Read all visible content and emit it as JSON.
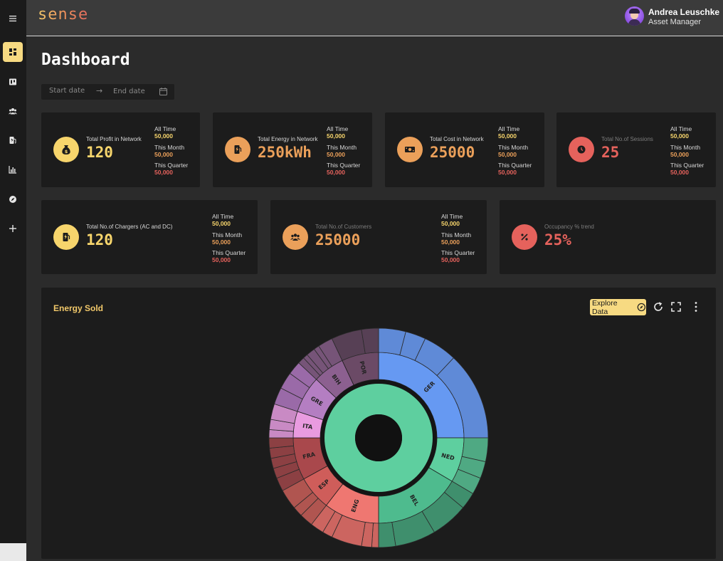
{
  "header": {
    "logo": "sense",
    "user_name": "Andrea Leuschke",
    "user_role": "Asset Manager"
  },
  "sidebar": {
    "items": [
      {
        "icon": "dashboard-icon",
        "active": true
      },
      {
        "icon": "board-icon",
        "active": false
      },
      {
        "icon": "users-icon",
        "active": false
      },
      {
        "icon": "ev-charger-icon",
        "active": false
      },
      {
        "icon": "bar-chart-icon",
        "active": false
      },
      {
        "icon": "compass-icon",
        "active": false
      },
      {
        "icon": "plus-icon",
        "active": false
      }
    ]
  },
  "page": {
    "title": "Dashboard",
    "date_range": {
      "start_placeholder": "Start date",
      "arrow": "→",
      "end_placeholder": "End date"
    }
  },
  "stat_labels": {
    "all_time": "All Time",
    "this_month": "This Month",
    "this_quarter": "This Quarter"
  },
  "colors": {
    "yellow": "#f7d56c",
    "orange": "#eba05a",
    "red": "#e5625c",
    "accent_button": "#f7da82"
  },
  "cards": [
    {
      "label": "Total Profit in Network",
      "value": "120",
      "color": "#f7d56c",
      "icon": "money-bag-icon",
      "all_time": "50,000",
      "this_month": "50,000",
      "this_quarter": "50,000"
    },
    {
      "label": "Total Energy in Network",
      "value": "250kWh",
      "color": "#eba05a",
      "icon": "fuel-pump-icon",
      "all_time": "50,000",
      "this_month": "50,000",
      "this_quarter": "50,000"
    },
    {
      "label": "Total Cost in Network",
      "value": "25000",
      "color": "#eba05a",
      "icon": "cash-icon",
      "all_time": "50,000",
      "this_month": "50,000",
      "this_quarter": "50,000"
    },
    {
      "label": "Total No.of Sessions",
      "value": "25",
      "color": "#e5625c",
      "icon": "clock-icon",
      "all_time": "50,000",
      "this_month": "50,000",
      "this_quarter": "50,000"
    },
    {
      "label": "Total No.of Chargers (AC and DC)",
      "value": "120",
      "color": "#f7d56c",
      "icon": "charger-icon",
      "all_time": "50,000",
      "this_month": "50,000",
      "this_quarter": "50,000"
    },
    {
      "label": "Total No.of Customers",
      "value": "25000",
      "color": "#eba05a",
      "icon": "group-icon",
      "all_time": "50,000",
      "this_month": "50,000",
      "this_quarter": "50,000"
    },
    {
      "label": "Occupancy % trend",
      "value": "25%",
      "color": "#e5625c",
      "icon": "percent-icon"
    }
  ],
  "energy_panel": {
    "title": "Energy Sold",
    "explore_label": "Explore Data"
  },
  "chart_data": {
    "type": "sunburst",
    "title": "Energy Sold",
    "segments": [
      {
        "label": "GER",
        "color": "#6699f2",
        "outer_color": "#5f8ad7",
        "share": 25.0,
        "children": [
          4,
          3,
          5,
          13
        ]
      },
      {
        "label": "NED",
        "color": "#5ecf9f",
        "outer_color": "#4fa983",
        "share": 8.5,
        "children": [
          3.5,
          2.5,
          2.5
        ]
      },
      {
        "label": "BEL",
        "color": "#4ebb8e",
        "outer_color": "#3f8f6d",
        "share": 16.5,
        "children": [
          2.5,
          5.5,
          6,
          2.5
        ]
      },
      {
        "label": "ENG",
        "color": "#ef7771",
        "outer_color": "#cc6560",
        "share": 10.5,
        "children": [
          1,
          1.5,
          4.5,
          1.5,
          2
        ]
      },
      {
        "label": "ESP",
        "color": "#cf5d5a",
        "outer_color": "#b05550",
        "share": 6.5,
        "children": [
          2,
          1.5,
          3
        ]
      },
      {
        "label": "FRA",
        "color": "#a9484c",
        "outer_color": "#8c4043",
        "share": 8.0,
        "children": [
          2,
          1.5,
          1.5,
          1.5,
          1.5
        ]
      },
      {
        "label": "ITA",
        "color": "#e99be0",
        "outer_color": "#c98ac4",
        "share": 5.0,
        "children": [
          1.2,
          1.5,
          2.3
        ]
      },
      {
        "label": "GRE",
        "color": "#b47ec2",
        "outer_color": "#9a6aa8",
        "share": 7.0,
        "children": [
          2.5,
          2.5,
          2
        ]
      },
      {
        "label": "BIH",
        "color": "#8c6090",
        "outer_color": "#765478",
        "share": 6.0,
        "children": [
          1,
          0.7,
          1.3,
          0.8,
          2.2
        ]
      },
      {
        "label": "POR",
        "color": "#6b4a66",
        "outer_color": "#574055",
        "share": 7.0,
        "children": [
          4.5,
          2.5
        ]
      }
    ],
    "center_color": "#5ecf9f"
  }
}
